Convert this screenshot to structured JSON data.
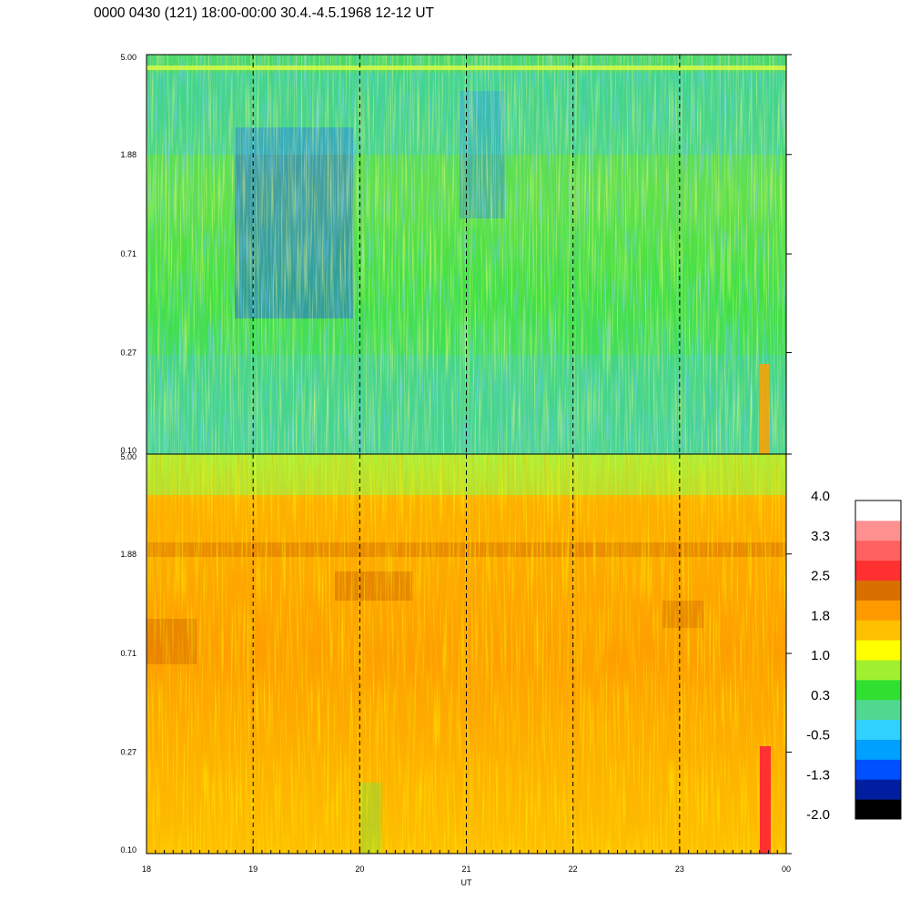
{
  "title": "0000 0430 (121) 18:00-00:00 30.4.-4.5.1968  12-12 UT",
  "chart_data": {
    "type": "heatmap",
    "title": "0000 0430 (121) 18:00-00:00 30.4.-4.5.1968  12-12 UT",
    "xlabel": "UT",
    "x_ticks": [
      "18",
      "19",
      "20",
      "21",
      "22",
      "23",
      "00"
    ],
    "x_tick_values": [
      18,
      19,
      20,
      21,
      22,
      23,
      24
    ],
    "xlim": [
      18,
      24
    ],
    "panels": [
      {
        "name": "top",
        "y_ticks": [
          "5.00",
          "1.88",
          "0.71",
          "0.27",
          "0.10"
        ],
        "y_tick_values": [
          5.0,
          1.88,
          0.71,
          0.27,
          0.1
        ],
        "ylim": [
          0.1,
          5.0
        ],
        "y_scale": "log",
        "dominant_colors": [
          "green",
          "cyan",
          "blue",
          "yellow"
        ]
      },
      {
        "name": "bottom",
        "y_ticks": [
          "5.00",
          "1.88",
          "0.71",
          "0.27",
          "0.10"
        ],
        "y_tick_values": [
          5.0,
          1.88,
          0.71,
          0.27,
          0.1
        ],
        "ylim": [
          0.1,
          5.0
        ],
        "y_scale": "log",
        "dominant_colors": [
          "orange",
          "yellow",
          "dark-orange",
          "green"
        ]
      }
    ],
    "colorbar": {
      "labels": [
        "4.0",
        "3.3",
        "2.5",
        "1.8",
        "1.0",
        "0.3",
        "-0.5",
        "-1.3",
        "-2.0"
      ],
      "colors": [
        "#000000",
        "#001fa0",
        "#0050ff",
        "#00a0ff",
        "#30d0ff",
        "#50d890",
        "#30e030",
        "#a0f030",
        "#ffff00",
        "#ffc000",
        "#ff9900",
        "#d87000",
        "#ff3030",
        "#ff6060",
        "#ff9090",
        "#ffffff"
      ]
    },
    "dashed_vlines_at": [
      19,
      20,
      21,
      22,
      23
    ],
    "grid": false
  }
}
